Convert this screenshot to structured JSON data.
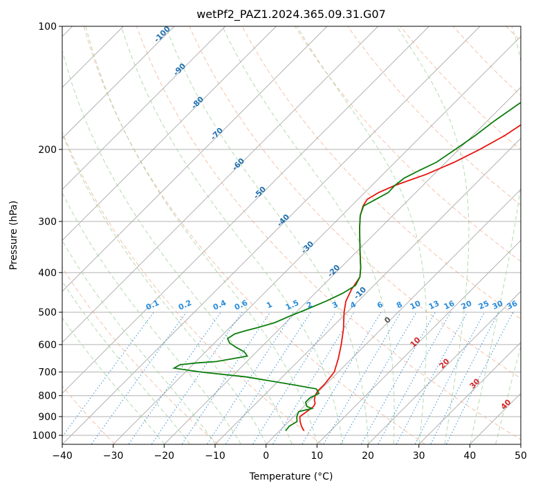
{
  "chart_data": {
    "type": "line",
    "subtype": "skew-t log-p",
    "title": "wetPf2_PAZ1.2024.365.09.31.G07",
    "xlabel": "Temperature (°C)",
    "ylabel": "Pressure (hPa)",
    "xlim": [
      -40,
      50
    ],
    "ylim": [
      1050,
      100
    ],
    "y_scale": "log",
    "grid": true,
    "x_ticks": [
      "−40",
      "−30",
      "−20",
      "−10",
      "0",
      "10",
      "20",
      "30",
      "40",
      "50"
    ],
    "x_tick_values": [
      -40,
      -30,
      -20,
      -10,
      0,
      10,
      20,
      30,
      40,
      50
    ],
    "y_ticks": [
      "100",
      "200",
      "300",
      "400",
      "500",
      "600",
      "700",
      "800",
      "900",
      "1000"
    ],
    "y_tick_values": [
      100,
      200,
      300,
      400,
      500,
      600,
      700,
      800,
      900,
      1000
    ],
    "series": [
      {
        "color": "#e8120c",
        "p": [
          975,
          950,
          925,
          900,
          875,
          850,
          835,
          820,
          800,
          780,
          750,
          700,
          650,
          600,
          550,
          500,
          470,
          440,
          410,
          390,
          370,
          350,
          330,
          310,
          290,
          275,
          265,
          255,
          245,
          230,
          215,
          200,
          185,
          170,
          155,
          145,
          135,
          125,
          115,
          105,
          100
        ],
        "t": [
          4.8,
          3.4,
          2.2,
          1.2,
          1.6,
          1.9,
          1.6,
          0.8,
          0.1,
          -0.3,
          -0.3,
          -0.8,
          -2.6,
          -4.8,
          -7.4,
          -10.6,
          -12.4,
          -13.6,
          -14.4,
          -16.0,
          -17.9,
          -19.9,
          -22.0,
          -24.2,
          -26.4,
          -27.7,
          -28.2,
          -27.3,
          -25.5,
          -21.5,
          -18.4,
          -15.9,
          -13.7,
          -12.2,
          -11.2,
          -10.0,
          -9.2,
          -8.0,
          -6.7,
          -5.6,
          -5.0
        ]
      },
      {
        "color": "#0a7c0a",
        "p": [
          975,
          950,
          925,
          900,
          875,
          860,
          850,
          830,
          810,
          790,
          770,
          750,
          720,
          700,
          685,
          672,
          665,
          660,
          650,
          640,
          625,
          610,
          595,
          580,
          565,
          555,
          545,
          530,
          510,
          495,
          470,
          450,
          430,
          410,
          390,
          370,
          350,
          330,
          310,
          290,
          275,
          265,
          255,
          245,
          235,
          225,
          215,
          200,
          185,
          170,
          155,
          145,
          135,
          125,
          115,
          105,
          100
        ],
        "t": [
          1.2,
          1.0,
          1.6,
          0.6,
          0.0,
          2.0,
          0.6,
          -0.5,
          -0.5,
          0.4,
          -1.0,
          -7.0,
          -17.0,
          -27.0,
          -33.0,
          -32.5,
          -29.5,
          -26.0,
          -23.4,
          -21.0,
          -22.4,
          -24.8,
          -27.0,
          -28.3,
          -27.8,
          -26.3,
          -24.5,
          -22.1,
          -20.4,
          -18.8,
          -16.3,
          -14.6,
          -13.6,
          -14.4,
          -16.0,
          -17.9,
          -19.9,
          -22.0,
          -24.2,
          -26.4,
          -27.6,
          -26.5,
          -25.4,
          -25.5,
          -25.1,
          -23.6,
          -21.9,
          -20.7,
          -19.5,
          -18.6,
          -17.2,
          -16.2,
          -15.3,
          -14.1,
          -12.6,
          -11.4,
          -10.6
        ]
      }
    ],
    "annotations": {
      "dry_adiabats_theta_k": [
        200,
        220,
        240,
        260,
        280,
        300,
        320,
        340,
        360,
        380,
        400,
        420,
        440,
        460,
        480,
        500
      ],
      "moist_adiabat_start_c": [
        -20,
        -15,
        -10,
        -5,
        0,
        5,
        10,
        15,
        20,
        25,
        30,
        35,
        40,
        45
      ],
      "isotherm_labels": [
        "-100",
        "-90",
        "-80",
        "-70",
        "-60",
        "-50",
        "-40",
        "-30",
        "-20",
        "-10",
        "0",
        "10",
        "20",
        "30",
        "40"
      ],
      "isotherm_label_values": [
        -100,
        -90,
        -80,
        -70,
        -60,
        -50,
        -40,
        -30,
        -20,
        -10,
        0,
        10,
        20,
        30,
        40
      ],
      "mixing_ratio_labels": [
        "0.1",
        "0.2",
        "0.4",
        "0.6",
        "1",
        "1.5",
        "2",
        "3",
        "4",
        "6",
        "8",
        "10",
        "13",
        "16",
        "20",
        "25",
        "30",
        "36"
      ],
      "mixing_ratio_values": [
        0.1,
        0.2,
        0.4,
        0.6,
        1,
        1.5,
        2,
        3,
        4,
        6,
        8,
        10,
        13,
        16,
        20,
        25,
        30,
        36
      ]
    }
  }
}
